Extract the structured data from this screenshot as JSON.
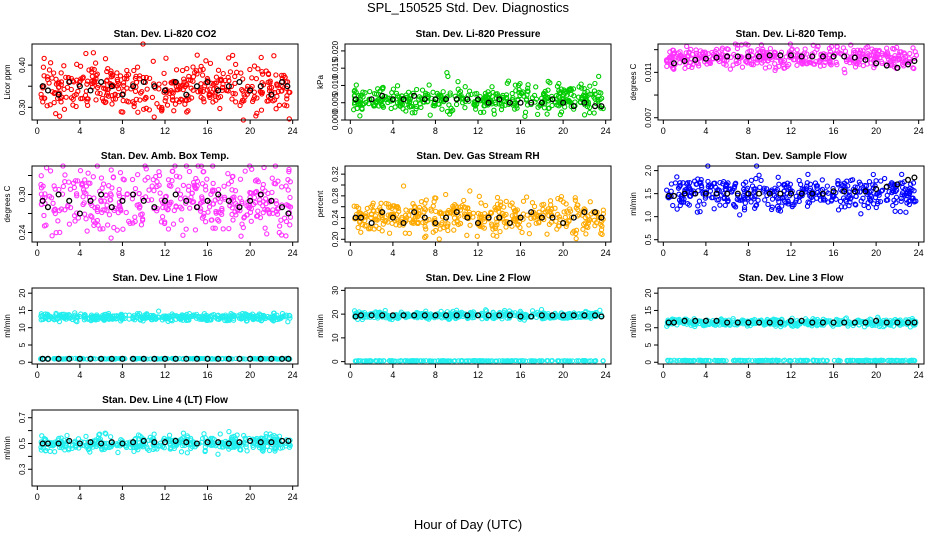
{
  "figure": {
    "title": "SPL_150525  Std. Dev. Diagnostics",
    "xlabel": "Hour of Day (UTC)"
  },
  "chart_data": [
    {
      "type": "scatter",
      "title": "Stan. Dev. Li-820 CO2",
      "ylabel": "Licor ppm",
      "xlim": [
        -0.5,
        24.5
      ],
      "ylim": [
        0.27,
        0.45
      ],
      "xticks": [
        0,
        4,
        8,
        12,
        16,
        20,
        24
      ],
      "yticks": [
        0.3,
        0.35,
        0.4
      ],
      "ytick_labels": [
        "0.30",
        "",
        "0.40"
      ],
      "color": "#ff0000",
      "center": 0.345,
      "spread": 0.03,
      "black_points": [
        [
          0.5,
          0.35
        ],
        [
          1,
          0.34
        ],
        [
          2,
          0.33
        ],
        [
          3,
          0.36
        ],
        [
          4,
          0.35
        ],
        [
          5,
          0.34
        ],
        [
          6,
          0.36
        ],
        [
          7,
          0.35
        ],
        [
          8,
          0.33
        ],
        [
          9,
          0.35
        ],
        [
          10,
          0.36
        ],
        [
          11,
          0.35
        ],
        [
          12,
          0.34
        ],
        [
          13,
          0.36
        ],
        [
          14,
          0.33
        ],
        [
          15,
          0.35
        ],
        [
          16,
          0.36
        ],
        [
          17,
          0.34
        ],
        [
          18,
          0.35
        ],
        [
          19,
          0.36
        ],
        [
          20,
          0.34
        ],
        [
          21,
          0.35
        ],
        [
          22,
          0.33
        ],
        [
          23,
          0.36
        ],
        [
          23.5,
          0.35
        ]
      ]
    },
    {
      "type": "scatter",
      "title": "Stan. Dev. Li-820 Pressure",
      "ylabel": "kPa",
      "xlim": [
        -0.5,
        24.5
      ],
      "ylim": [
        0.0,
        0.022
      ],
      "xticks": [
        0,
        4,
        8,
        12,
        16,
        20,
        24
      ],
      "yticks": [
        0.0,
        0.005,
        0.01,
        0.015,
        0.02
      ],
      "ytick_labels": [
        "0.000",
        "0.005",
        "0.010",
        "0.015",
        "0.020"
      ],
      "color": "#00cc00",
      "center": 0.006,
      "spread": 0.002,
      "black_points": [
        [
          0.5,
          0.006
        ],
        [
          2,
          0.006
        ],
        [
          3,
          0.007
        ],
        [
          4,
          0.006
        ],
        [
          5,
          0.006
        ],
        [
          6,
          0.007
        ],
        [
          7,
          0.006
        ],
        [
          8,
          0.006
        ],
        [
          9,
          0.006
        ],
        [
          10,
          0.006
        ],
        [
          11,
          0.006
        ],
        [
          12,
          0.006
        ],
        [
          13,
          0.005
        ],
        [
          14,
          0.006
        ],
        [
          15,
          0.005
        ],
        [
          16,
          0.005
        ],
        [
          17,
          0.005
        ],
        [
          18,
          0.005
        ],
        [
          19,
          0.006
        ],
        [
          20,
          0.005
        ],
        [
          21,
          0.004
        ],
        [
          22,
          0.005
        ],
        [
          23,
          0.004
        ],
        [
          23.6,
          0.004
        ]
      ]
    },
    {
      "type": "scatter",
      "title": "Stan. Dev. Li-820 Temp.",
      "ylabel": "degrees C",
      "xlim": [
        -0.5,
        24.5
      ],
      "ylim": [
        0.0068,
        0.0135
      ],
      "xticks": [
        0,
        4,
        8,
        12,
        16,
        20,
        24
      ],
      "yticks": [
        0.007,
        0.009,
        0.011,
        0.013
      ],
      "ytick_labels": [
        "0.007",
        "",
        "0.011",
        ""
      ],
      "color": "#ff33ff",
      "center": 0.0123,
      "spread": 0.0005,
      "black_points": [
        [
          1,
          0.0118
        ],
        [
          2,
          0.012
        ],
        [
          3,
          0.0121
        ],
        [
          4,
          0.0122
        ],
        [
          5,
          0.0123
        ],
        [
          6,
          0.0124
        ],
        [
          7,
          0.0124
        ],
        [
          8,
          0.0124
        ],
        [
          9,
          0.0124
        ],
        [
          10,
          0.0125
        ],
        [
          11,
          0.0125
        ],
        [
          12,
          0.0125
        ],
        [
          13,
          0.0124
        ],
        [
          14,
          0.0124
        ],
        [
          15,
          0.0124
        ],
        [
          16,
          0.0124
        ],
        [
          17,
          0.0124
        ],
        [
          18,
          0.0123
        ],
        [
          19,
          0.0121
        ],
        [
          20,
          0.0118
        ],
        [
          21,
          0.0116
        ],
        [
          22,
          0.0114
        ],
        [
          23,
          0.0117
        ],
        [
          23.6,
          0.012
        ]
      ]
    },
    {
      "type": "scatter",
      "title": "Stan. Dev. Amb. Box Temp.",
      "ylabel": "degrees C",
      "xlim": [
        -0.5,
        24.5
      ],
      "ylim": [
        0.225,
        0.345
      ],
      "xticks": [
        0,
        4,
        8,
        12,
        16,
        20,
        24
      ],
      "yticks": [
        0.24,
        0.27,
        0.3,
        0.33
      ],
      "ytick_labels": [
        "0.24",
        "",
        "0.30",
        ""
      ],
      "color": "#ff33ff",
      "center": 0.29,
      "spread": 0.025,
      "black_points": [
        [
          0.5,
          0.29
        ],
        [
          1,
          0.28
        ],
        [
          2,
          0.3
        ],
        [
          3,
          0.29
        ],
        [
          4,
          0.27
        ],
        [
          5,
          0.29
        ],
        [
          6,
          0.3
        ],
        [
          7,
          0.28
        ],
        [
          8,
          0.29
        ],
        [
          9,
          0.3
        ],
        [
          10,
          0.29
        ],
        [
          11,
          0.28
        ],
        [
          12,
          0.29
        ],
        [
          13,
          0.3
        ],
        [
          14,
          0.29
        ],
        [
          15,
          0.28
        ],
        [
          16,
          0.29
        ],
        [
          17,
          0.3
        ],
        [
          18,
          0.29
        ],
        [
          19,
          0.28
        ],
        [
          20,
          0.29
        ],
        [
          21,
          0.3
        ],
        [
          22,
          0.29
        ],
        [
          23,
          0.28
        ],
        [
          23.6,
          0.27
        ]
      ]
    },
    {
      "type": "scatter",
      "title": "Stan. Dev. Gas Stream RH",
      "ylabel": "percent",
      "xlim": [
        -0.5,
        24.5
      ],
      "ylim": [
        0.195,
        0.335
      ],
      "xticks": [
        0,
        4,
        8,
        12,
        16,
        20,
        24
      ],
      "yticks": [
        0.2,
        0.22,
        0.24,
        0.26,
        0.28,
        0.3,
        0.32
      ],
      "ytick_labels": [
        "0.20",
        "",
        "0.24",
        "",
        "0.28",
        "",
        "0.32"
      ],
      "color": "#ffaa00",
      "center": 0.242,
      "spread": 0.015,
      "black_points": [
        [
          0.5,
          0.24
        ],
        [
          1,
          0.24
        ],
        [
          2,
          0.23
        ],
        [
          3,
          0.25
        ],
        [
          4,
          0.24
        ],
        [
          5,
          0.23
        ],
        [
          6,
          0.25
        ],
        [
          7,
          0.24
        ],
        [
          8,
          0.23
        ],
        [
          9,
          0.24
        ],
        [
          10,
          0.25
        ],
        [
          11,
          0.24
        ],
        [
          12,
          0.23
        ],
        [
          13,
          0.24
        ],
        [
          14,
          0.24
        ],
        [
          15,
          0.23
        ],
        [
          16,
          0.24
        ],
        [
          17,
          0.25
        ],
        [
          18,
          0.24
        ],
        [
          19,
          0.24
        ],
        [
          20,
          0.23
        ],
        [
          21,
          0.24
        ],
        [
          22,
          0.25
        ],
        [
          23,
          0.25
        ],
        [
          23.6,
          0.24
        ]
      ]
    },
    {
      "type": "scatter",
      "title": "Stan. Dev. Sample Flow",
      "ylabel": "ml/min",
      "xlim": [
        -0.5,
        24.5
      ],
      "ylim": [
        0.45,
        2.1
      ],
      "xticks": [
        0,
        4,
        8,
        12,
        16,
        20,
        24
      ],
      "yticks": [
        0.5,
        1.0,
        1.5,
        2.0
      ],
      "ytick_labels": [
        "0.5",
        "1.0",
        "1.5",
        "2.0"
      ],
      "color": "#0000ff",
      "center": 1.5,
      "spread": 0.18,
      "black_points": [
        [
          0.5,
          1.45
        ],
        [
          1,
          1.45
        ],
        [
          2,
          1.5
        ],
        [
          3,
          1.5
        ],
        [
          4,
          1.5
        ],
        [
          5,
          1.5
        ],
        [
          6,
          1.5
        ],
        [
          7,
          1.5
        ],
        [
          8,
          1.5
        ],
        [
          9,
          1.5
        ],
        [
          10,
          1.5
        ],
        [
          11,
          1.5
        ],
        [
          12,
          1.5
        ],
        [
          13,
          1.5
        ],
        [
          14,
          1.5
        ],
        [
          15,
          1.5
        ],
        [
          16,
          1.55
        ],
        [
          17,
          1.55
        ],
        [
          18,
          1.55
        ],
        [
          19,
          1.55
        ],
        [
          20,
          1.6
        ],
        [
          21,
          1.65
        ],
        [
          22,
          1.7
        ],
        [
          23,
          1.8
        ],
        [
          23.6,
          1.85
        ]
      ]
    },
    {
      "type": "scatter",
      "title": "Stan. Dev. Line 1 Flow",
      "ylabel": "ml/min",
      "xlim": [
        -0.5,
        24.5
      ],
      "ylim": [
        -0.5,
        21.5
      ],
      "xticks": [
        0,
        4,
        8,
        12,
        16,
        20,
        24
      ],
      "yticks": [
        0,
        5,
        10,
        15,
        20
      ],
      "ytick_labels": [
        "0",
        "5",
        "10",
        "15",
        "20"
      ],
      "color": "#22eeee",
      "center": 13,
      "spread": 0.5,
      "low_band": 1.0,
      "black_points": [
        [
          0.5,
          1
        ],
        [
          1,
          1
        ],
        [
          2,
          1
        ],
        [
          3,
          1
        ],
        [
          4,
          1
        ],
        [
          5,
          1
        ],
        [
          6,
          1
        ],
        [
          7,
          1
        ],
        [
          8,
          1
        ],
        [
          9,
          1
        ],
        [
          10,
          1
        ],
        [
          11,
          1
        ],
        [
          12,
          1
        ],
        [
          13,
          1
        ],
        [
          14,
          1
        ],
        [
          15,
          1
        ],
        [
          16,
          1
        ],
        [
          17,
          1
        ],
        [
          18,
          1
        ],
        [
          19,
          1
        ],
        [
          20,
          1
        ],
        [
          21,
          1
        ],
        [
          22,
          1
        ],
        [
          23,
          1
        ],
        [
          23.6,
          1
        ]
      ]
    },
    {
      "type": "scatter",
      "title": "Stan. Dev. Line 2 Flow",
      "ylabel": "ml/min",
      "xlim": [
        -0.5,
        24.5
      ],
      "ylim": [
        -1,
        31
      ],
      "xticks": [
        0,
        4,
        8,
        12,
        16,
        20,
        24
      ],
      "yticks": [
        0,
        10,
        20,
        30
      ],
      "ytick_labels": [
        "0",
        "10",
        "20",
        "30"
      ],
      "color": "#22eeee",
      "center": 19.5,
      "spread": 0.8,
      "low_band": 0.3,
      "black_points": [
        [
          0.5,
          19
        ],
        [
          1,
          19.5
        ],
        [
          2,
          19.5
        ],
        [
          3,
          19.5
        ],
        [
          4,
          19.5
        ],
        [
          5,
          19.5
        ],
        [
          6,
          19.5
        ],
        [
          7,
          19.5
        ],
        [
          8,
          19.5
        ],
        [
          9,
          19.5
        ],
        [
          10,
          19.5
        ],
        [
          11,
          19.5
        ],
        [
          12,
          19.5
        ],
        [
          13,
          19.5
        ],
        [
          14,
          19.5
        ],
        [
          15,
          19.5
        ],
        [
          16,
          19
        ],
        [
          17,
          19
        ],
        [
          18,
          19.5
        ],
        [
          19,
          19.5
        ],
        [
          20,
          19.5
        ],
        [
          21,
          19.5
        ],
        [
          22,
          19.5
        ],
        [
          23,
          19.5
        ],
        [
          23.6,
          19
        ]
      ]
    },
    {
      "type": "scatter",
      "title": "Stan. Dev. Line 3 Flow",
      "ylabel": "ml/min",
      "xlim": [
        -0.5,
        24.5
      ],
      "ylim": [
        -0.5,
        21.5
      ],
      "xticks": [
        0,
        4,
        8,
        12,
        16,
        20,
        24
      ],
      "yticks": [
        0,
        5,
        10,
        15,
        20
      ],
      "ytick_labels": [
        "0",
        "5",
        "10",
        "15",
        "20"
      ],
      "color": "#22eeee",
      "center": 11.5,
      "spread": 0.5,
      "low_band": 0.5,
      "black_points": [
        [
          0.5,
          11.5
        ],
        [
          1,
          11.5
        ],
        [
          2,
          12
        ],
        [
          3,
          12
        ],
        [
          4,
          12
        ],
        [
          5,
          12
        ],
        [
          6,
          11.5
        ],
        [
          7,
          11.5
        ],
        [
          8,
          11.5
        ],
        [
          9,
          11.5
        ],
        [
          10,
          11.5
        ],
        [
          11,
          11.5
        ],
        [
          12,
          12
        ],
        [
          13,
          12
        ],
        [
          14,
          11.5
        ],
        [
          15,
          11.5
        ],
        [
          16,
          11.5
        ],
        [
          17,
          11.5
        ],
        [
          18,
          11.5
        ],
        [
          19,
          11.5
        ],
        [
          20,
          12
        ],
        [
          21,
          11.5
        ],
        [
          22,
          11.5
        ],
        [
          23,
          11.5
        ],
        [
          23.6,
          11.5
        ]
      ]
    },
    {
      "type": "scatter",
      "title": "Stan. Dev. Line 4 (LT) Flow",
      "ylabel": "ml/min",
      "xlim": [
        -0.5,
        24.5
      ],
      "ylim": [
        0.17,
        0.76
      ],
      "xticks": [
        0,
        4,
        8,
        12,
        16,
        20,
        24
      ],
      "yticks": [
        0.3,
        0.4,
        0.5,
        0.6,
        0.7
      ],
      "ytick_labels": [
        "0.3",
        "",
        "0.5",
        "",
        "0.7"
      ],
      "color": "#22eeee",
      "center": 0.5,
      "spread": 0.03,
      "black_points": [
        [
          0.5,
          0.5
        ],
        [
          1,
          0.5
        ],
        [
          2,
          0.5
        ],
        [
          3,
          0.52
        ],
        [
          4,
          0.5
        ],
        [
          5,
          0.51
        ],
        [
          6,
          0.5
        ],
        [
          7,
          0.51
        ],
        [
          8,
          0.5
        ],
        [
          9,
          0.51
        ],
        [
          10,
          0.52
        ],
        [
          11,
          0.51
        ],
        [
          12,
          0.51
        ],
        [
          13,
          0.52
        ],
        [
          14,
          0.51
        ],
        [
          15,
          0.5
        ],
        [
          16,
          0.51
        ],
        [
          17,
          0.51
        ],
        [
          18,
          0.5
        ],
        [
          19,
          0.51
        ],
        [
          20,
          0.52
        ],
        [
          21,
          0.51
        ],
        [
          22,
          0.51
        ],
        [
          23,
          0.52
        ],
        [
          23.6,
          0.52
        ]
      ]
    }
  ]
}
